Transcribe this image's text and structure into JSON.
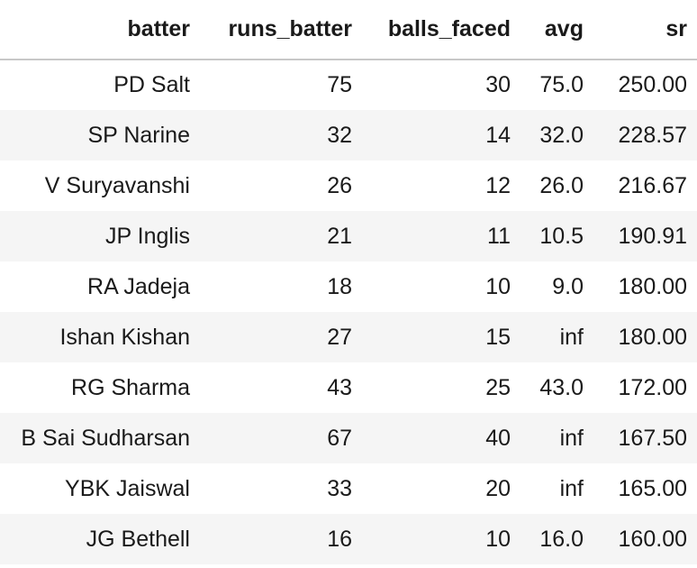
{
  "table": {
    "columns": [
      "batter",
      "runs_batter",
      "balls_faced",
      "avg",
      "sr"
    ],
    "rows": [
      {
        "batter": "PD Salt",
        "runs_batter": "75",
        "balls_faced": "30",
        "avg": "75.0",
        "sr": "250.00"
      },
      {
        "batter": "SP Narine",
        "runs_batter": "32",
        "balls_faced": "14",
        "avg": "32.0",
        "sr": "228.57"
      },
      {
        "batter": "V Suryavanshi",
        "runs_batter": "26",
        "balls_faced": "12",
        "avg": "26.0",
        "sr": "216.67"
      },
      {
        "batter": "JP Inglis",
        "runs_batter": "21",
        "balls_faced": "11",
        "avg": "10.5",
        "sr": "190.91"
      },
      {
        "batter": "RA Jadeja",
        "runs_batter": "18",
        "balls_faced": "10",
        "avg": "9.0",
        "sr": "180.00"
      },
      {
        "batter": "Ishan Kishan",
        "runs_batter": "27",
        "balls_faced": "15",
        "avg": "inf",
        "sr": "180.00"
      },
      {
        "batter": "RG Sharma",
        "runs_batter": "43",
        "balls_faced": "25",
        "avg": "43.0",
        "sr": "172.00"
      },
      {
        "batter": "B Sai Sudharsan",
        "runs_batter": "67",
        "balls_faced": "40",
        "avg": "inf",
        "sr": "167.50"
      },
      {
        "batter": "YBK Jaiswal",
        "runs_batter": "33",
        "balls_faced": "20",
        "avg": "inf",
        "sr": "165.00"
      },
      {
        "batter": "JG Bethell",
        "runs_batter": "16",
        "balls_faced": "10",
        "avg": "16.0",
        "sr": "160.00"
      }
    ]
  }
}
